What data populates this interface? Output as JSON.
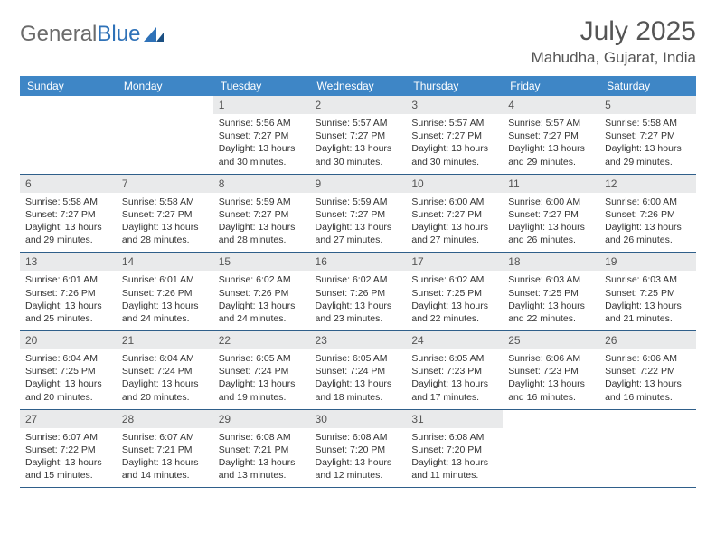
{
  "brand": {
    "part1": "General",
    "part2": "Blue"
  },
  "title": "July 2025",
  "location": "Mahudha, Gujarat, India",
  "colors": {
    "header_bg": "#3e86c6",
    "daynum_bg": "#e9eaeb",
    "rule": "#2f5f8a",
    "text": "#333333",
    "title_text": "#555555"
  },
  "weekdays": [
    "Sunday",
    "Monday",
    "Tuesday",
    "Wednesday",
    "Thursday",
    "Friday",
    "Saturday"
  ],
  "weeks": [
    [
      null,
      null,
      {
        "n": "1",
        "sr": "Sunrise: 5:56 AM",
        "ss": "Sunset: 7:27 PM",
        "dl": "Daylight: 13 hours and 30 minutes."
      },
      {
        "n": "2",
        "sr": "Sunrise: 5:57 AM",
        "ss": "Sunset: 7:27 PM",
        "dl": "Daylight: 13 hours and 30 minutes."
      },
      {
        "n": "3",
        "sr": "Sunrise: 5:57 AM",
        "ss": "Sunset: 7:27 PM",
        "dl": "Daylight: 13 hours and 30 minutes."
      },
      {
        "n": "4",
        "sr": "Sunrise: 5:57 AM",
        "ss": "Sunset: 7:27 PM",
        "dl": "Daylight: 13 hours and 29 minutes."
      },
      {
        "n": "5",
        "sr": "Sunrise: 5:58 AM",
        "ss": "Sunset: 7:27 PM",
        "dl": "Daylight: 13 hours and 29 minutes."
      }
    ],
    [
      {
        "n": "6",
        "sr": "Sunrise: 5:58 AM",
        "ss": "Sunset: 7:27 PM",
        "dl": "Daylight: 13 hours and 29 minutes."
      },
      {
        "n": "7",
        "sr": "Sunrise: 5:58 AM",
        "ss": "Sunset: 7:27 PM",
        "dl": "Daylight: 13 hours and 28 minutes."
      },
      {
        "n": "8",
        "sr": "Sunrise: 5:59 AM",
        "ss": "Sunset: 7:27 PM",
        "dl": "Daylight: 13 hours and 28 minutes."
      },
      {
        "n": "9",
        "sr": "Sunrise: 5:59 AM",
        "ss": "Sunset: 7:27 PM",
        "dl": "Daylight: 13 hours and 27 minutes."
      },
      {
        "n": "10",
        "sr": "Sunrise: 6:00 AM",
        "ss": "Sunset: 7:27 PM",
        "dl": "Daylight: 13 hours and 27 minutes."
      },
      {
        "n": "11",
        "sr": "Sunrise: 6:00 AM",
        "ss": "Sunset: 7:27 PM",
        "dl": "Daylight: 13 hours and 26 minutes."
      },
      {
        "n": "12",
        "sr": "Sunrise: 6:00 AM",
        "ss": "Sunset: 7:26 PM",
        "dl": "Daylight: 13 hours and 26 minutes."
      }
    ],
    [
      {
        "n": "13",
        "sr": "Sunrise: 6:01 AM",
        "ss": "Sunset: 7:26 PM",
        "dl": "Daylight: 13 hours and 25 minutes."
      },
      {
        "n": "14",
        "sr": "Sunrise: 6:01 AM",
        "ss": "Sunset: 7:26 PM",
        "dl": "Daylight: 13 hours and 24 minutes."
      },
      {
        "n": "15",
        "sr": "Sunrise: 6:02 AM",
        "ss": "Sunset: 7:26 PM",
        "dl": "Daylight: 13 hours and 24 minutes."
      },
      {
        "n": "16",
        "sr": "Sunrise: 6:02 AM",
        "ss": "Sunset: 7:26 PM",
        "dl": "Daylight: 13 hours and 23 minutes."
      },
      {
        "n": "17",
        "sr": "Sunrise: 6:02 AM",
        "ss": "Sunset: 7:25 PM",
        "dl": "Daylight: 13 hours and 22 minutes."
      },
      {
        "n": "18",
        "sr": "Sunrise: 6:03 AM",
        "ss": "Sunset: 7:25 PM",
        "dl": "Daylight: 13 hours and 22 minutes."
      },
      {
        "n": "19",
        "sr": "Sunrise: 6:03 AM",
        "ss": "Sunset: 7:25 PM",
        "dl": "Daylight: 13 hours and 21 minutes."
      }
    ],
    [
      {
        "n": "20",
        "sr": "Sunrise: 6:04 AM",
        "ss": "Sunset: 7:25 PM",
        "dl": "Daylight: 13 hours and 20 minutes."
      },
      {
        "n": "21",
        "sr": "Sunrise: 6:04 AM",
        "ss": "Sunset: 7:24 PM",
        "dl": "Daylight: 13 hours and 20 minutes."
      },
      {
        "n": "22",
        "sr": "Sunrise: 6:05 AM",
        "ss": "Sunset: 7:24 PM",
        "dl": "Daylight: 13 hours and 19 minutes."
      },
      {
        "n": "23",
        "sr": "Sunrise: 6:05 AM",
        "ss": "Sunset: 7:24 PM",
        "dl": "Daylight: 13 hours and 18 minutes."
      },
      {
        "n": "24",
        "sr": "Sunrise: 6:05 AM",
        "ss": "Sunset: 7:23 PM",
        "dl": "Daylight: 13 hours and 17 minutes."
      },
      {
        "n": "25",
        "sr": "Sunrise: 6:06 AM",
        "ss": "Sunset: 7:23 PM",
        "dl": "Daylight: 13 hours and 16 minutes."
      },
      {
        "n": "26",
        "sr": "Sunrise: 6:06 AM",
        "ss": "Sunset: 7:22 PM",
        "dl": "Daylight: 13 hours and 16 minutes."
      }
    ],
    [
      {
        "n": "27",
        "sr": "Sunrise: 6:07 AM",
        "ss": "Sunset: 7:22 PM",
        "dl": "Daylight: 13 hours and 15 minutes."
      },
      {
        "n": "28",
        "sr": "Sunrise: 6:07 AM",
        "ss": "Sunset: 7:21 PM",
        "dl": "Daylight: 13 hours and 14 minutes."
      },
      {
        "n": "29",
        "sr": "Sunrise: 6:08 AM",
        "ss": "Sunset: 7:21 PM",
        "dl": "Daylight: 13 hours and 13 minutes."
      },
      {
        "n": "30",
        "sr": "Sunrise: 6:08 AM",
        "ss": "Sunset: 7:20 PM",
        "dl": "Daylight: 13 hours and 12 minutes."
      },
      {
        "n": "31",
        "sr": "Sunrise: 6:08 AM",
        "ss": "Sunset: 7:20 PM",
        "dl": "Daylight: 13 hours and 11 minutes."
      },
      null,
      null
    ]
  ]
}
